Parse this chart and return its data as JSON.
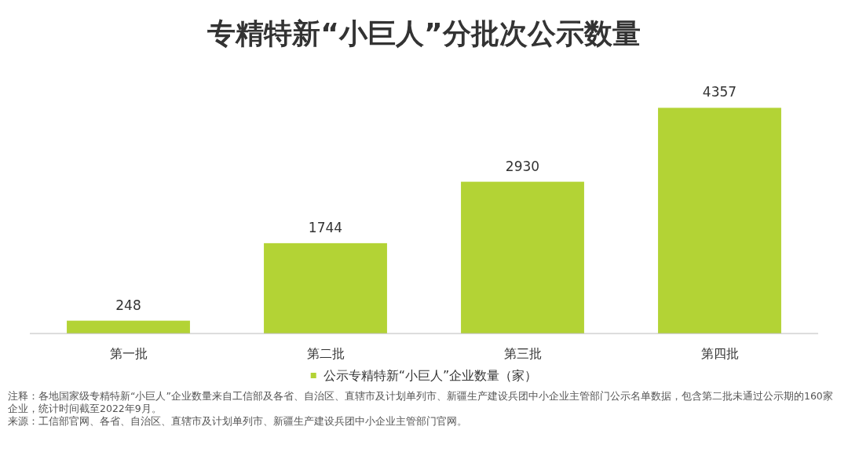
{
  "chart_data": {
    "type": "bar",
    "title": "专精特新“小巨人”分批次公示数量",
    "categories": [
      "第一批",
      "第二批",
      "第三批",
      "第四批"
    ],
    "series": [
      {
        "name": "公示专精特新“小巨人”企业数量（家）",
        "color": "#b3d335",
        "values": [
          248,
          1744,
          2930,
          4357
        ]
      }
    ],
    "data_labels": true,
    "legend": "bottom",
    "annotations": [
      "注释：各地国家级专精特新“小巨人”企业数量来自工信部及各省、自治区、直辖市及计划单列市、新疆生产建设兵团中小企业主管部门公示名单数据，包含第二批未通过公示期的160家企业，统计时间截至2022年9月。",
      "来源：工信部官网、各省、自治区、直辖市及计划单列市、新疆生产建设兵团中小企业主管部门官网。"
    ]
  }
}
